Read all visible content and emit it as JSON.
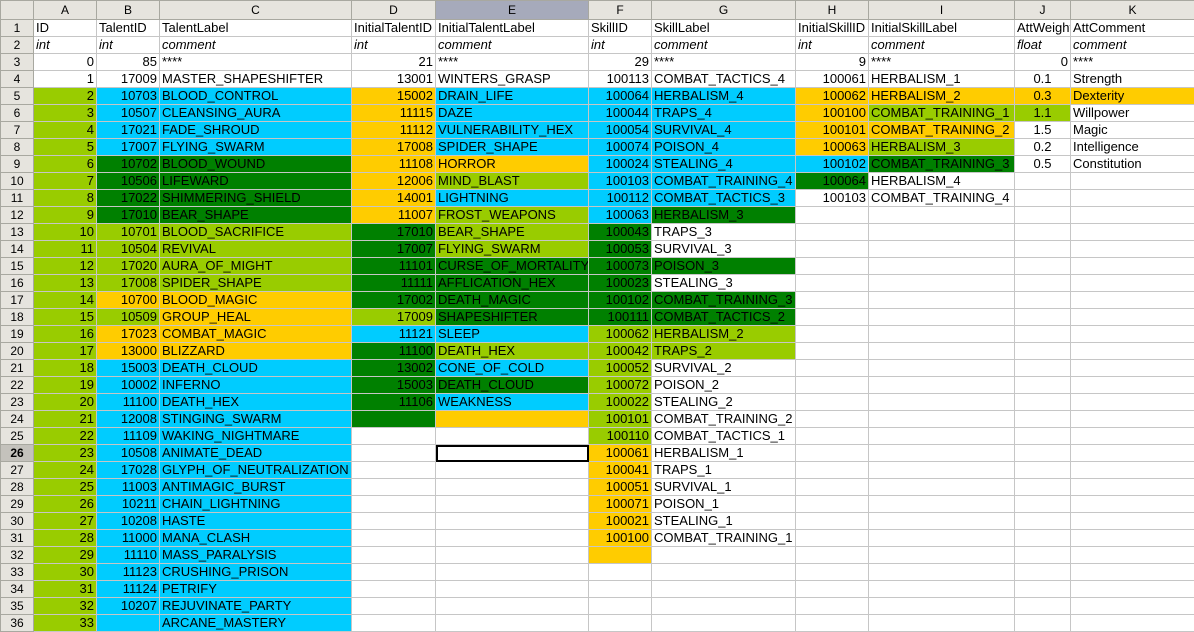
{
  "sheet": {
    "columns": [
      "A",
      "B",
      "C",
      "D",
      "E",
      "F",
      "G",
      "H",
      "I",
      "J",
      "K"
    ],
    "selected_column": "E",
    "selected_row": 26,
    "active_cell": "E26",
    "colors": {
      "c": "#00ccff",
      "o": "#ffcc00",
      "l": "#99cc00",
      "d": "#008000"
    },
    "rows": [
      [
        "ID",
        "TalentID",
        "TalentLabel",
        "InitialTalentID",
        "InitialTalentLabel",
        "SkillID",
        "SkillLabel",
        "InitialSkillID",
        "InitialSkillLabel",
        "AttWeight",
        "AttComment"
      ],
      [
        "int",
        "int",
        "comment",
        "int",
        "comment",
        "int",
        "comment",
        "int",
        "comment",
        "float",
        "comment"
      ],
      [
        "0",
        "85",
        "****",
        "21",
        "****",
        "29",
        "****",
        "9",
        "****",
        "0",
        "****"
      ],
      [
        "1",
        "17009",
        "MASTER_SHAPESHIFTER",
        "13001",
        "WINTERS_GRASP",
        "100113",
        "COMBAT_TACTICS_4",
        "100061",
        "HERBALISM_1",
        "0.1",
        "Strength"
      ],
      [
        "2",
        "10703",
        "BLOOD_CONTROL",
        "15002",
        "DRAIN_LIFE",
        "100064",
        "HERBALISM_4",
        "100062",
        "HERBALISM_2",
        "0.3",
        "Dexterity"
      ],
      [
        "3",
        "10507",
        "CLEANSING_AURA",
        "11115",
        "DAZE",
        "100044",
        "TRAPS_4",
        "100100",
        "COMBAT_TRAINING_1",
        "1.1",
        "Willpower"
      ],
      [
        "4",
        "17021",
        "FADE_SHROUD",
        "11112",
        "VULNERABILITY_HEX",
        "100054",
        "SURVIVAL_4",
        "100101",
        "COMBAT_TRAINING_2",
        "1.5",
        "Magic"
      ],
      [
        "5",
        "17007",
        "FLYING_SWARM",
        "17008",
        "SPIDER_SHAPE",
        "100074",
        "POISON_4",
        "100063",
        "HERBALISM_3",
        "0.2",
        "Intelligence"
      ],
      [
        "6",
        "10702",
        "BLOOD_WOUND",
        "11108",
        "HORROR",
        "100024",
        "STEALING_4",
        "100102",
        "COMBAT_TRAINING_3",
        "0.5",
        "Constitution"
      ],
      [
        "7",
        "10506",
        "LIFEWARD",
        "12006",
        "MIND_BLAST",
        "100103",
        "COMBAT_TRAINING_4",
        "100064",
        "HERBALISM_4",
        "",
        ""
      ],
      [
        "8",
        "17022",
        "SHIMMERING_SHIELD",
        "14001",
        "LIGHTNING",
        "100112",
        "COMBAT_TACTICS_3",
        "100103",
        "COMBAT_TRAINING_4",
        "",
        ""
      ],
      [
        "9",
        "17010",
        "BEAR_SHAPE",
        "11007",
        "FROST_WEAPONS",
        "100063",
        "HERBALISM_3",
        "",
        "",
        "",
        ""
      ],
      [
        "10",
        "10701",
        "BLOOD_SACRIFICE",
        "17010",
        "BEAR_SHAPE",
        "100043",
        "TRAPS_3",
        "",
        "",
        "",
        ""
      ],
      [
        "11",
        "10504",
        "REVIVAL",
        "17007",
        "FLYING_SWARM",
        "100053",
        "SURVIVAL_3",
        "",
        "",
        "",
        ""
      ],
      [
        "12",
        "17020",
        "AURA_OF_MIGHT",
        "11101",
        "CURSE_OF_MORTALITY",
        "100073",
        "POISON_3",
        "",
        "",
        "",
        ""
      ],
      [
        "13",
        "17008",
        "SPIDER_SHAPE",
        "11111",
        "AFFLICATION_HEX",
        "100023",
        "STEALING_3",
        "",
        "",
        "",
        ""
      ],
      [
        "14",
        "10700",
        "BLOOD_MAGIC",
        "17002",
        "DEATH_MAGIC",
        "100102",
        "COMBAT_TRAINING_3",
        "",
        "",
        "",
        ""
      ],
      [
        "15",
        "10509",
        "GROUP_HEAL",
        "17009",
        "SHAPESHIFTER",
        "100111",
        "COMBAT_TACTICS_2",
        "",
        "",
        "",
        ""
      ],
      [
        "16",
        "17023",
        "COMBAT_MAGIC",
        "11121",
        "SLEEP",
        "100062",
        "HERBALISM_2",
        "",
        "",
        "",
        ""
      ],
      [
        "17",
        "13000",
        "BLIZZARD",
        "11100",
        "DEATH_HEX",
        "100042",
        "TRAPS_2",
        "",
        "",
        "",
        ""
      ],
      [
        "18",
        "15003",
        "DEATH_CLOUD",
        "13002",
        "CONE_OF_COLD",
        "100052",
        "SURVIVAL_2",
        "",
        "",
        "",
        ""
      ],
      [
        "19",
        "10002",
        "INFERNO",
        "15003",
        "DEATH_CLOUD",
        "100072",
        "POISON_2",
        "",
        "",
        "",
        ""
      ],
      [
        "20",
        "11100",
        "DEATH_HEX",
        "11106",
        "WEAKNESS",
        "100022",
        "STEALING_2",
        "",
        "",
        "",
        ""
      ],
      [
        "21",
        "12008",
        "STINGING_SWARM",
        "",
        "",
        "100101",
        "COMBAT_TRAINING_2",
        "",
        "",
        "",
        ""
      ],
      [
        "22",
        "11109",
        "WAKING_NIGHTMARE",
        "",
        "",
        "100110",
        "COMBAT_TACTICS_1",
        "",
        "",
        "",
        ""
      ],
      [
        "23",
        "10508",
        "ANIMATE_DEAD",
        "",
        "",
        "100061",
        "HERBALISM_1",
        "",
        "",
        "",
        ""
      ],
      [
        "24",
        "17028",
        "GLYPH_OF_NEUTRALIZATION",
        "",
        "",
        "100041",
        "TRAPS_1",
        "",
        "",
        "",
        ""
      ],
      [
        "25",
        "11003",
        "ANTIMAGIC_BURST",
        "",
        "",
        "100051",
        "SURVIVAL_1",
        "",
        "",
        "",
        ""
      ],
      [
        "26",
        "10211",
        "CHAIN_LIGHTNING",
        "",
        "",
        "100071",
        "POISON_1",
        "",
        "",
        "",
        ""
      ],
      [
        "27",
        "10208",
        "HASTE",
        "",
        "",
        "100021",
        "STEALING_1",
        "",
        "",
        "",
        ""
      ],
      [
        "28",
        "11000",
        "MANA_CLASH",
        "",
        "",
        "100100",
        "COMBAT_TRAINING_1",
        "",
        "",
        "",
        ""
      ],
      [
        "29",
        "11110",
        "MASS_PARALYSIS",
        "",
        "",
        "",
        "",
        "",
        "",
        "",
        ""
      ],
      [
        "30",
        "11123",
        "CRUSHING_PRISON",
        "",
        "",
        "",
        "",
        "",
        "",
        "",
        ""
      ],
      [
        "31",
        "11124",
        "PETRIFY",
        "",
        "",
        "",
        "",
        "",
        "",
        "",
        ""
      ],
      [
        "32",
        "10207",
        "REJUVINATE_PARTY",
        "",
        "",
        "",
        "",
        "",
        "",
        "",
        ""
      ],
      [
        "33",
        "",
        "ARCANE_MASTERY",
        "",
        "",
        "",
        "",
        "",
        "",
        "",
        ""
      ]
    ],
    "fills": [
      "",
      "",
      "",
      "",
      "lccocccoooo",
      "lccocccolla",
      "lccocccooaa",
      "lccocccolaa",
      "lddoocccdaa",
      "lddolccdaaa",
      "lddocccaaaa",
      "lddolcdaaaa",
      "llldldaaaaa",
      "llldldaaaaa",
      "lllddddaaaa",
      "llldddaaaaa",
      "looddddaaaa",
      "lloldddaaaa",
      "looccllaaaa",
      "loodlllaaaa",
      "lccdclaaaaa",
      "lccddlaaaaa",
      "lccdclaaaaa",
      "lccdolaaaaa",
      "lccaalaaaaa",
      "lccaaoaaaaa",
      "lccaaoaaaaa",
      "lccaaoaaaaa",
      "lccaaoaaaaa",
      "lccaaoaaaaa",
      "lccaaoaaaaa",
      "lccaaoaaaaa",
      "lccaaaaaaaa",
      "lccaaaaaaaa",
      "lccaaaaaaaa",
      "lccaaaaaaaa",
      "lccaaaaaaaa"
    ]
  }
}
